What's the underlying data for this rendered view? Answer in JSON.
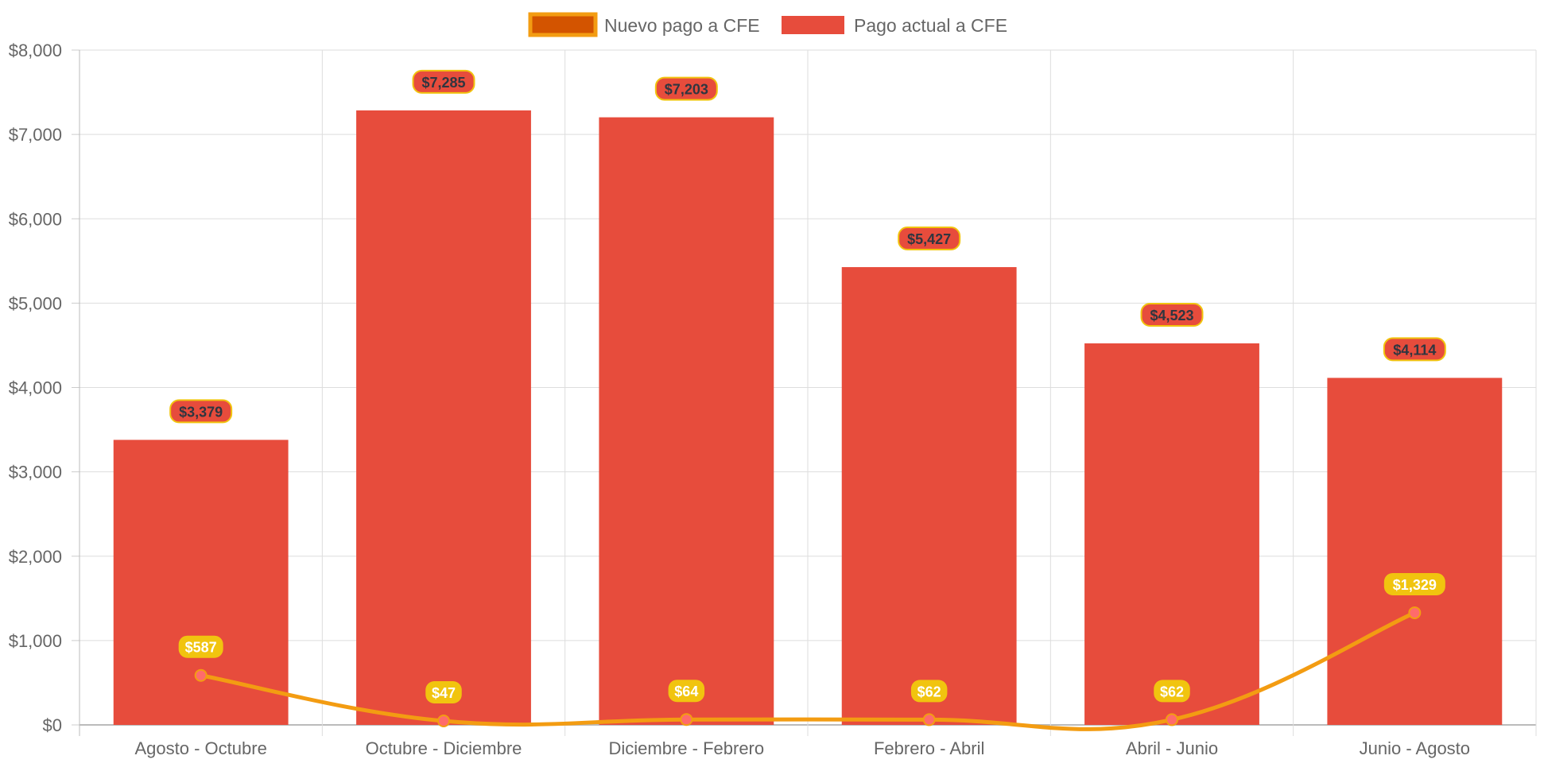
{
  "chart_data": {
    "type": "bar",
    "categories": [
      "Agosto - Octubre",
      "Octubre - Diciembre",
      "Diciembre - Febrero",
      "Febrero - Abril",
      "Abril - Junio",
      "Junio - Agosto"
    ],
    "series": [
      {
        "name": "Nuevo pago a CFE",
        "type": "line",
        "values": [
          587,
          47,
          64,
          62,
          62,
          1329
        ],
        "labels": [
          "$587",
          "$47",
          "$64",
          "$62",
          "$62",
          "$1,329"
        ],
        "color": "#f39c12",
        "point_color": "#ff6b6b",
        "label_bg": "#f1c40f",
        "legend_fill": "#d35400"
      },
      {
        "name": "Pago actual a CFE",
        "type": "bar",
        "values": [
          3379,
          7285,
          7203,
          5427,
          4523,
          4114
        ],
        "labels": [
          "$3,379",
          "$7,285",
          "$7,203",
          "$5,427",
          "$4,523",
          "$4,114"
        ],
        "color": "#e74c3c",
        "label_bg": "#e74c3c",
        "label_border": "#f1c40f"
      }
    ],
    "y_ticks": [
      "$0",
      "$1,000",
      "$2,000",
      "$3,000",
      "$4,000",
      "$5,000",
      "$6,000",
      "$7,000",
      "$8,000"
    ],
    "ylim": [
      0,
      8000
    ],
    "y_step": 1000,
    "grid": true,
    "legend_position": "top-center"
  }
}
